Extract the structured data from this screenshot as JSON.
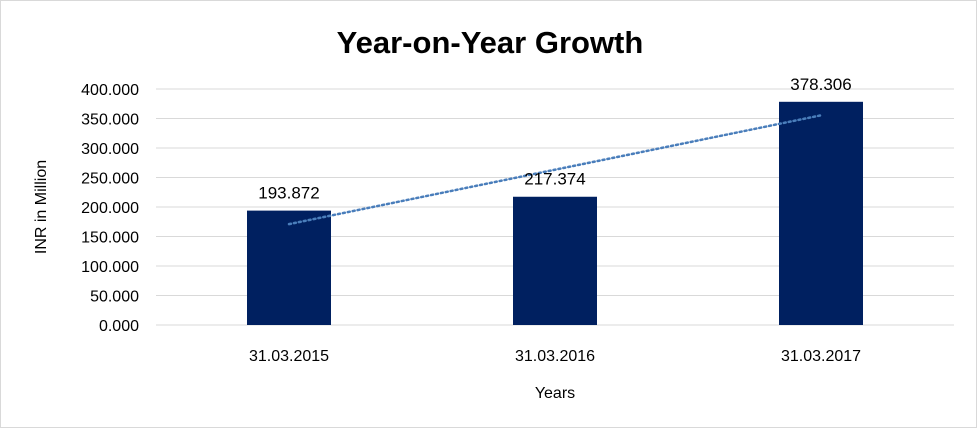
{
  "chart_data": {
    "type": "bar",
    "title": "Year-on-Year Growth",
    "xlabel": "Years",
    "ylabel": "INR in Million",
    "categories": [
      "31.03.2015",
      "31.03.2016",
      "31.03.2017"
    ],
    "values": [
      193.872,
      217.374,
      378.306
    ],
    "data_labels": [
      "193.872",
      "217.374",
      "378.306"
    ],
    "ylim": [
      0,
      400
    ],
    "yticks": [
      "0.000",
      "50.000",
      "100.000",
      "150.000",
      "200.000",
      "250.000",
      "300.000",
      "350.000",
      "400.000"
    ],
    "grid": true,
    "trendline": "linear",
    "colors": {
      "bar": "#002060",
      "trendline": "#4a7ebb",
      "grid": "#d9d9d9"
    }
  }
}
